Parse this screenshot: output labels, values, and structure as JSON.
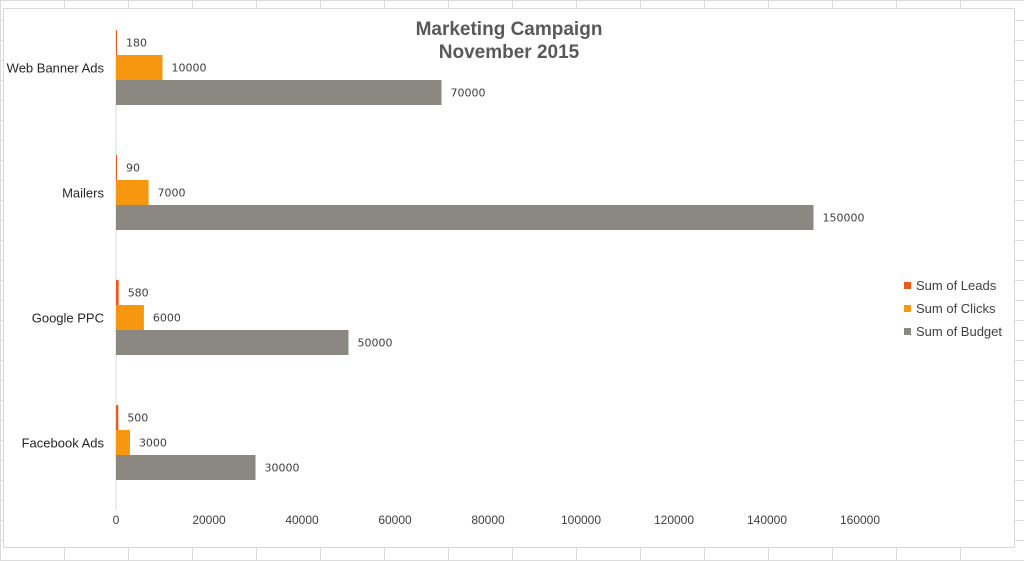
{
  "chart_data": {
    "type": "bar",
    "orientation": "horizontal",
    "title_lines": [
      "Marketing Campaign",
      "November 2015"
    ],
    "categories": [
      "Web Banner Ads",
      "Mailers",
      "Google PPC",
      "Facebook Ads"
    ],
    "series": [
      {
        "name": "Sum of Leads",
        "color": "#ec5a19",
        "values": [
          180,
          90,
          580,
          500
        ]
      },
      {
        "name": "Sum of Clicks",
        "color": "#f7960f",
        "values": [
          10000,
          7000,
          6000,
          3000
        ]
      },
      {
        "name": "Sum of Budget",
        "color": "#8b8781",
        "values": [
          70000,
          150000,
          50000,
          30000
        ]
      }
    ],
    "x_ticks": [
      0,
      20000,
      40000,
      60000,
      80000,
      100000,
      120000,
      140000,
      160000
    ],
    "xlim": [
      0,
      160000
    ],
    "grid": false,
    "legend_position": "right",
    "data_labels": true
  }
}
